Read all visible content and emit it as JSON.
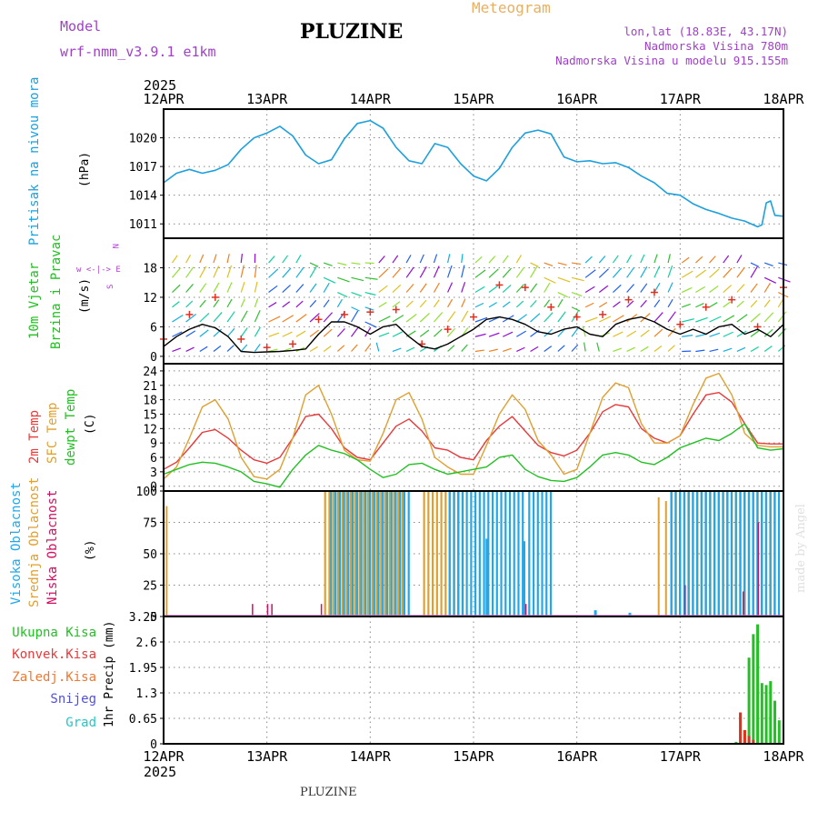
{
  "header": {
    "model_label": "Model",
    "model_name": "wrf-nmm_v3.9.1  e1km",
    "station_title": "PLUZINE",
    "meteogram_title": "Meteogram",
    "lonlat": "lon,lat (18.83E, 43.17N)",
    "elevation": "Nadmorska Visina 780m",
    "model_elevation": "Nadmorska Visina u modelu 915.155m",
    "year_top": "2025",
    "year_bottom": "2025",
    "footer_station": "PLUZINE",
    "watermark": "made by Angel"
  },
  "colors": {
    "pressure": "#1ea0dc",
    "wind_speed": "#000000",
    "gust": "#e03020",
    "temp2m": "#e83a3a",
    "sfc_temp": "#e0a030",
    "dewpoint": "#22c022",
    "high_cloud": "#22a8e8",
    "mid_cloud": "#e0a030",
    "low_cloud": "#d01060",
    "total_precip": "#22c022",
    "conv_precip": "#e03020",
    "grid": "#888888"
  },
  "panel_labels": {
    "pressure": {
      "title": "Pritisak na nivou mora",
      "unit": "(hPa)"
    },
    "wind": {
      "title1": "10m Vjetar",
      "title2": "Brzina i Pravac",
      "unit": "(m/s)",
      "compass": "w <-|-> E",
      "compass_n": "N",
      "compass_s": "S"
    },
    "temperature": {
      "t2m": "2m Temp",
      "sfc": "SFC Temp",
      "dew": "dewpt Temp",
      "unit": "(C)"
    },
    "cloud": {
      "high": "Visoka Oblacnost",
      "mid": "Srednja Oblacnost",
      "low": "Niska Oblacnost",
      "unit": "(%)"
    },
    "precip": {
      "total": "Ukupna Kisa",
      "conv": "Konvek.Kisa",
      "frozen": "Zaledj.Kisa",
      "snow": "Snijeg",
      "graupel": "Grad",
      "unit_label": "1hr Precip (mm)"
    }
  },
  "chart_data": [
    {
      "type": "line",
      "name": "pressure",
      "x_labels": [
        "12APR",
        "13APR",
        "14APR",
        "15APR",
        "16APR",
        "17APR",
        "18APR"
      ],
      "xlim": [
        0,
        144
      ],
      "ylim": [
        1009.5,
        1023
      ],
      "yticks": [
        1011,
        1014,
        1017,
        1020
      ],
      "grid": true,
      "series": [
        {
          "color_key": "pressure",
          "x": [
            0,
            3,
            6,
            9,
            12,
            15,
            18,
            21,
            24,
            27,
            30,
            33,
            36,
            39,
            42,
            45,
            48,
            51,
            54,
            57,
            60,
            63,
            66,
            69,
            72,
            75,
            78,
            81,
            84,
            87,
            90,
            93,
            96,
            99,
            102,
            105,
            108,
            111,
            114,
            117,
            120,
            123,
            126,
            129,
            132,
            135,
            138,
            139,
            140,
            141,
            142,
            144
          ],
          "y": [
            1015.3,
            1016.3,
            1016.7,
            1016.3,
            1016.6,
            1017.2,
            1018.8,
            1020.0,
            1020.5,
            1021.2,
            1020.2,
            1018.2,
            1017.3,
            1017.7,
            1019.9,
            1021.5,
            1021.8,
            1021.0,
            1019.0,
            1017.6,
            1017.3,
            1019.4,
            1019.0,
            1017.3,
            1016.0,
            1015.5,
            1016.8,
            1019.0,
            1020.5,
            1020.8,
            1020.4,
            1018.0,
            1017.5,
            1017.6,
            1017.3,
            1017.4,
            1016.9,
            1016.0,
            1015.3,
            1014.2,
            1014.0,
            1013.1,
            1012.5,
            1012.1,
            1011.6,
            1011.3,
            1010.7,
            1010.9,
            1013.2,
            1013.4,
            1011.9,
            1011.8
          ]
        }
      ]
    },
    {
      "type": "line",
      "name": "wind",
      "xlim": [
        0,
        144
      ],
      "ylim": [
        -1.5,
        24
      ],
      "yticks": [
        0,
        6,
        12,
        18
      ],
      "grid": true,
      "series": [
        {
          "color_key": "wind_speed",
          "x": [
            0,
            3,
            6,
            9,
            12,
            15,
            18,
            21,
            24,
            27,
            30,
            33,
            36,
            39,
            42,
            45,
            48,
            51,
            54,
            57,
            60,
            63,
            66,
            69,
            72,
            75,
            78,
            81,
            84,
            87,
            90,
            93,
            96,
            99,
            102,
            105,
            108,
            111,
            114,
            117,
            120,
            123,
            126,
            129,
            132,
            135,
            138,
            141,
            144
          ],
          "y": [
            2.0,
            4.0,
            5.5,
            6.5,
            5.8,
            4.0,
            1.0,
            0.8,
            0.9,
            1.0,
            1.2,
            1.5,
            4.5,
            7.0,
            7.0,
            6.0,
            4.5,
            6.0,
            6.5,
            4.0,
            2.0,
            1.5,
            2.5,
            4.0,
            5.5,
            7.5,
            8.0,
            7.5,
            6.5,
            5.0,
            4.5,
            5.5,
            6.0,
            4.5,
            4.0,
            6.5,
            7.5,
            8.0,
            7.0,
            5.5,
            4.5,
            5.5,
            4.5,
            6.0,
            6.5,
            4.5,
            5.5,
            4.0,
            6.5
          ]
        },
        {
          "color_key": "gust",
          "x": [
            0,
            6,
            12,
            18,
            24,
            30,
            36,
            42,
            48,
            54,
            60,
            66,
            72,
            78,
            84,
            90,
            96,
            102,
            108,
            114,
            120,
            126,
            132,
            138,
            144
          ],
          "y": [
            3.5,
            8.5,
            12.0,
            3.5,
            1.8,
            2.5,
            7.5,
            8.5,
            9.0,
            9.5,
            2.5,
            5.5,
            8.0,
            14.5,
            14.0,
            10.0,
            8.0,
            8.5,
            11.5,
            13.0,
            6.5,
            10.0,
            11.5,
            6.0,
            14.0
          ]
        }
      ]
    },
    {
      "type": "line",
      "name": "temperature",
      "xlim": [
        0,
        144
      ],
      "ylim": [
        -1,
        25.5
      ],
      "yticks": [
        0,
        3,
        6,
        9,
        12,
        15,
        18,
        21,
        24
      ],
      "grid": true,
      "series": [
        {
          "color_key": "temp2m",
          "x": [
            0,
            3,
            6,
            9,
            12,
            15,
            18,
            21,
            24,
            27,
            30,
            33,
            36,
            39,
            42,
            45,
            48,
            51,
            54,
            57,
            60,
            63,
            66,
            69,
            72,
            75,
            78,
            81,
            84,
            87,
            90,
            93,
            96,
            99,
            102,
            105,
            108,
            111,
            114,
            117,
            120,
            123,
            126,
            129,
            132,
            135,
            138,
            141,
            144
          ],
          "y": [
            3.5,
            5.0,
            8.0,
            11.2,
            11.8,
            10.0,
            7.5,
            5.5,
            4.8,
            6.0,
            10.0,
            14.5,
            15.0,
            12.0,
            8.0,
            6.0,
            5.5,
            9.0,
            12.5,
            14.0,
            11.5,
            8.0,
            7.5,
            6.0,
            5.5,
            9.5,
            12.5,
            14.5,
            11.5,
            8.5,
            7.0,
            6.3,
            7.5,
            11.0,
            15.5,
            17.0,
            16.5,
            12.0,
            10.0,
            9.0,
            10.5,
            15.0,
            19.0,
            19.5,
            17.5,
            13.0,
            9.0,
            8.8,
            8.8
          ]
        },
        {
          "color_key": "sfc_temp",
          "x": [
            0,
            3,
            6,
            9,
            12,
            15,
            18,
            21,
            24,
            27,
            30,
            33,
            36,
            39,
            42,
            45,
            48,
            51,
            54,
            57,
            60,
            63,
            66,
            69,
            72,
            75,
            78,
            81,
            84,
            87,
            90,
            93,
            96,
            99,
            102,
            105,
            108,
            111,
            114,
            117,
            120,
            123,
            126,
            129,
            132,
            135,
            138,
            141,
            144
          ],
          "y": [
            1.5,
            4.0,
            10.0,
            16.5,
            18.0,
            14.0,
            6.0,
            2.0,
            1.5,
            3.5,
            10.0,
            19.0,
            21.0,
            15.0,
            7.5,
            5.5,
            5.2,
            11.0,
            18.0,
            19.5,
            14.0,
            6.0,
            4.0,
            2.5,
            2.5,
            8.5,
            15.0,
            19.0,
            16.0,
            9.5,
            6.5,
            2.5,
            3.5,
            11.0,
            18.5,
            21.5,
            20.5,
            13.0,
            9.0,
            9.0,
            10.5,
            17.0,
            22.5,
            23.5,
            19.0,
            11.0,
            8.5,
            8.2,
            8.2
          ]
        },
        {
          "color_key": "dewpoint",
          "x": [
            0,
            3,
            6,
            9,
            12,
            15,
            18,
            21,
            24,
            27,
            30,
            33,
            36,
            39,
            42,
            45,
            48,
            51,
            54,
            57,
            60,
            63,
            66,
            69,
            72,
            75,
            78,
            81,
            84,
            87,
            90,
            93,
            96,
            99,
            102,
            105,
            108,
            111,
            114,
            117,
            120,
            123,
            126,
            129,
            132,
            135,
            138,
            141,
            144
          ],
          "y": [
            2.5,
            3.5,
            4.5,
            5.0,
            4.8,
            4.0,
            3.0,
            1.0,
            0.5,
            -0.2,
            3.5,
            6.5,
            8.5,
            7.5,
            6.8,
            5.5,
            3.5,
            1.8,
            2.5,
            4.5,
            4.8,
            3.5,
            2.5,
            3.0,
            3.5,
            4.0,
            6.0,
            6.5,
            3.5,
            2.0,
            1.2,
            1.0,
            1.8,
            4.0,
            6.5,
            7.0,
            6.5,
            5.0,
            4.5,
            6.0,
            8.0,
            9.0,
            10.0,
            9.5,
            11.0,
            13.0,
            8.0,
            7.5,
            7.8
          ]
        }
      ]
    },
    {
      "type": "bar",
      "name": "cloud",
      "xlim": [
        0,
        144
      ],
      "ylim": [
        0,
        100
      ],
      "yticks": [
        0,
        25,
        50,
        75,
        100
      ],
      "grid": true,
      "description_series": [
        "high",
        "mid",
        "low"
      ],
      "mid_spikes_x": [
        0.5,
        114.8,
        116.5
      ],
      "mid_spikes_y": [
        88,
        95,
        92
      ],
      "low_spikes_x": [
        20.5,
        24.0,
        25.0,
        36.5,
        84.0,
        121.0,
        134.5,
        138.0
      ],
      "low_spikes_y": [
        10,
        10,
        10,
        10,
        10,
        25,
        20,
        75
      ],
      "high_blocks": [
        {
          "x_from": 38.5,
          "x_to": 56.5,
          "value": 100
        },
        {
          "x_from": 66.0,
          "x_to": 74.5,
          "value": 100
        },
        {
          "x_from": 75.0,
          "x_to": 83.0,
          "value": 100
        },
        {
          "x_from": 84.5,
          "x_to": 89.5,
          "value": 100
        },
        {
          "x_from": 117.5,
          "x_to": 143.0,
          "value": 100
        }
      ],
      "mid_blocks": [
        {
          "x_from": 37.5,
          "x_to": 56.0,
          "value": 100
        },
        {
          "x_from": 60.5,
          "x_to": 70.0,
          "value": 100
        },
        {
          "x_from": 118.0,
          "x_to": 142.5,
          "value": 100
        }
      ],
      "high_partial_x": [
        74.8,
        83.4,
        100.0,
        108.0
      ],
      "high_partial_y": [
        62,
        60,
        5,
        3
      ]
    },
    {
      "type": "bar",
      "name": "precip",
      "xlim": [
        0,
        144
      ],
      "ylim": [
        0,
        3.25
      ],
      "yticks": [
        0,
        0.65,
        1.3,
        1.95,
        2.6,
        3.25
      ],
      "ytick_labels": [
        "0",
        "0.65",
        "1.3",
        "1.95",
        "2.6",
        "3.25"
      ],
      "grid": true,
      "series": [
        {
          "color_key": "total_precip",
          "x": [
            133,
            134,
            135,
            136,
            137,
            138,
            139,
            140,
            141,
            142,
            143
          ],
          "y": [
            0.05,
            0.8,
            0.35,
            2.2,
            2.8,
            3.05,
            1.55,
            1.5,
            1.6,
            1.1,
            0.6
          ]
        },
        {
          "color_key": "conv_precip",
          "x": [
            134,
            135,
            136,
            137
          ],
          "y": [
            0.8,
            0.35,
            0.2,
            0.1
          ]
        }
      ]
    }
  ]
}
